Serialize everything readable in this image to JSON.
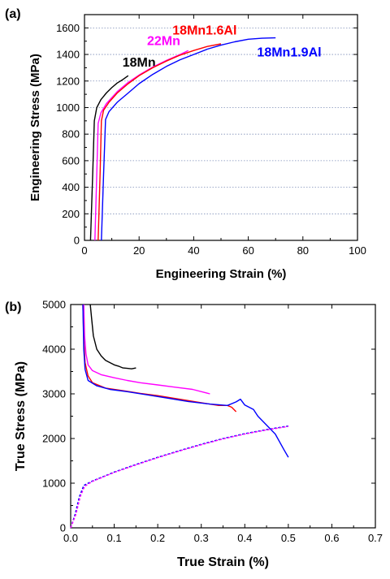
{
  "chart_data": [
    {
      "panel": "(a)",
      "type": "line",
      "xlabel": "Engineering Strain (%)",
      "ylabel": "Engineering Stress (MPa)",
      "xlim": [
        0,
        100
      ],
      "ylim": [
        0,
        1700
      ],
      "xticks": [
        0,
        20,
        40,
        60,
        80,
        100
      ],
      "yticks": [
        0,
        200,
        400,
        600,
        800,
        1000,
        1200,
        1400,
        1600
      ],
      "grid": "horizontal dotted",
      "series": [
        {
          "name": "18Mn",
          "color": "#000000",
          "label_x": 20,
          "label_y": 1310,
          "points": [
            [
              2.2,
              0
            ],
            [
              3.0,
              500
            ],
            [
              3.6,
              900
            ],
            [
              4.5,
              1000
            ],
            [
              6,
              1060
            ],
            [
              8,
              1110
            ],
            [
              10,
              1150
            ],
            [
              12,
              1185
            ],
            [
              14,
              1210
            ],
            [
              16,
              1240
            ]
          ]
        },
        {
          "name": "22Mn",
          "color": "#ff00ff",
          "label_x": 29,
          "label_y": 1470,
          "points": [
            [
              3.8,
              0
            ],
            [
              4.5,
              500
            ],
            [
              5.0,
              880
            ],
            [
              6,
              960
            ],
            [
              8,
              1030
            ],
            [
              12,
              1120
            ],
            [
              16,
              1190
            ],
            [
              20,
              1245
            ],
            [
              25,
              1305
            ],
            [
              30,
              1355
            ],
            [
              35,
              1400
            ],
            [
              38,
              1430
            ]
          ]
        },
        {
          "name": "18Mn1.6Al",
          "color": "#ff0000",
          "label_x": 44,
          "label_y": 1550,
          "points": [
            [
              5.0,
              0
            ],
            [
              5.7,
              500
            ],
            [
              6.2,
              900
            ],
            [
              7,
              980
            ],
            [
              9,
              1040
            ],
            [
              12,
              1110
            ],
            [
              16,
              1180
            ],
            [
              20,
              1240
            ],
            [
              25,
              1300
            ],
            [
              30,
              1350
            ],
            [
              35,
              1395
            ],
            [
              40,
              1430
            ],
            [
              45,
              1460
            ],
            [
              50,
              1480
            ]
          ]
        },
        {
          "name": "18Mn1.9Al",
          "color": "#0000ff",
          "label_x": 75,
          "label_y": 1385,
          "points": [
            [
              6.2,
              0
            ],
            [
              7.0,
              500
            ],
            [
              7.7,
              910
            ],
            [
              9,
              970
            ],
            [
              12,
              1040
            ],
            [
              16,
              1110
            ],
            [
              20,
              1180
            ],
            [
              25,
              1250
            ],
            [
              30,
              1310
            ],
            [
              35,
              1360
            ],
            [
              40,
              1400
            ],
            [
              45,
              1440
            ],
            [
              50,
              1470
            ],
            [
              55,
              1495
            ],
            [
              60,
              1515
            ],
            [
              65,
              1522
            ],
            [
              70,
              1525
            ]
          ]
        }
      ]
    },
    {
      "panel": "(b)",
      "type": "line",
      "xlabel": "True Strain (%)",
      "ylabel": "True Stress (MPa)",
      "xlim": [
        0,
        0.7
      ],
      "ylim": [
        0,
        5000
      ],
      "xticks": [
        0.0,
        0.1,
        0.2,
        0.3,
        0.4,
        0.5,
        0.6,
        0.7
      ],
      "yticks": [
        0,
        1000,
        2000,
        3000,
        4000,
        5000
      ],
      "grid": "none",
      "series": [
        {
          "color": "#000000",
          "style": "solid",
          "points": [
            [
              0.045,
              5000
            ],
            [
              0.048,
              4700
            ],
            [
              0.052,
              4300
            ],
            [
              0.06,
              4000
            ],
            [
              0.07,
              3850
            ],
            [
              0.08,
              3750
            ],
            [
              0.09,
              3700
            ],
            [
              0.1,
              3650
            ],
            [
              0.11,
              3620
            ],
            [
              0.12,
              3580
            ],
            [
              0.13,
              3570
            ],
            [
              0.14,
              3560
            ],
            [
              0.15,
              3580
            ]
          ]
        },
        {
          "color": "#ff00ff",
          "style": "solid",
          "points": [
            [
              0.03,
              5000
            ],
            [
              0.032,
              4300
            ],
            [
              0.035,
              3900
            ],
            [
              0.04,
              3650
            ],
            [
              0.05,
              3520
            ],
            [
              0.07,
              3430
            ],
            [
              0.1,
              3360
            ],
            [
              0.13,
              3300
            ],
            [
              0.16,
              3250
            ],
            [
              0.2,
              3200
            ],
            [
              0.24,
              3150
            ],
            [
              0.28,
              3100
            ],
            [
              0.32,
              3000
            ]
          ]
        },
        {
          "color": "#ff0000",
          "style": "solid",
          "points": [
            [
              0.028,
              5000
            ],
            [
              0.03,
              4200
            ],
            [
              0.033,
              3700
            ],
            [
              0.04,
              3400
            ],
            [
              0.05,
              3250
            ],
            [
              0.08,
              3130
            ],
            [
              0.12,
              3070
            ],
            [
              0.16,
              3010
            ],
            [
              0.2,
              2960
            ],
            [
              0.25,
              2880
            ],
            [
              0.3,
              2800
            ],
            [
              0.34,
              2740
            ],
            [
              0.36,
              2740
            ],
            [
              0.37,
              2700
            ],
            [
              0.38,
              2600
            ]
          ]
        },
        {
          "color": "#0000ff",
          "style": "solid",
          "points": [
            [
              0.028,
              5000
            ],
            [
              0.03,
              4000
            ],
            [
              0.033,
              3550
            ],
            [
              0.04,
              3300
            ],
            [
              0.06,
              3180
            ],
            [
              0.09,
              3100
            ],
            [
              0.13,
              3050
            ],
            [
              0.18,
              2970
            ],
            [
              0.22,
              2910
            ],
            [
              0.27,
              2830
            ],
            [
              0.32,
              2770
            ],
            [
              0.36,
              2740
            ],
            [
              0.38,
              2820
            ],
            [
              0.39,
              2880
            ],
            [
              0.4,
              2750
            ],
            [
              0.42,
              2650
            ],
            [
              0.43,
              2500
            ],
            [
              0.45,
              2300
            ],
            [
              0.47,
              2100
            ],
            [
              0.49,
              1750
            ],
            [
              0.5,
              1580
            ]
          ]
        },
        {
          "color": "#0000ff",
          "style": "dashed",
          "points": [
            [
              0.0,
              0
            ],
            [
              0.01,
              300
            ],
            [
              0.02,
              700
            ],
            [
              0.03,
              950
            ],
            [
              0.05,
              1050
            ],
            [
              0.1,
              1250
            ],
            [
              0.15,
              1420
            ],
            [
              0.2,
              1580
            ],
            [
              0.25,
              1730
            ],
            [
              0.3,
              1870
            ],
            [
              0.35,
              2000
            ],
            [
              0.4,
              2110
            ],
            [
              0.45,
              2200
            ],
            [
              0.5,
              2280
            ]
          ]
        },
        {
          "color": "#ff00ff",
          "style": "dashed",
          "points": [
            [
              0.0,
              0
            ],
            [
              0.012,
              300
            ],
            [
              0.022,
              700
            ],
            [
              0.032,
              930
            ],
            [
              0.05,
              1040
            ],
            [
              0.1,
              1240
            ],
            [
              0.15,
              1410
            ],
            [
              0.2,
              1570
            ],
            [
              0.25,
              1720
            ],
            [
              0.3,
              1860
            ],
            [
              0.35,
              1990
            ],
            [
              0.4,
              2100
            ],
            [
              0.45,
              2190
            ],
            [
              0.5,
              2270
            ]
          ]
        }
      ]
    }
  ]
}
